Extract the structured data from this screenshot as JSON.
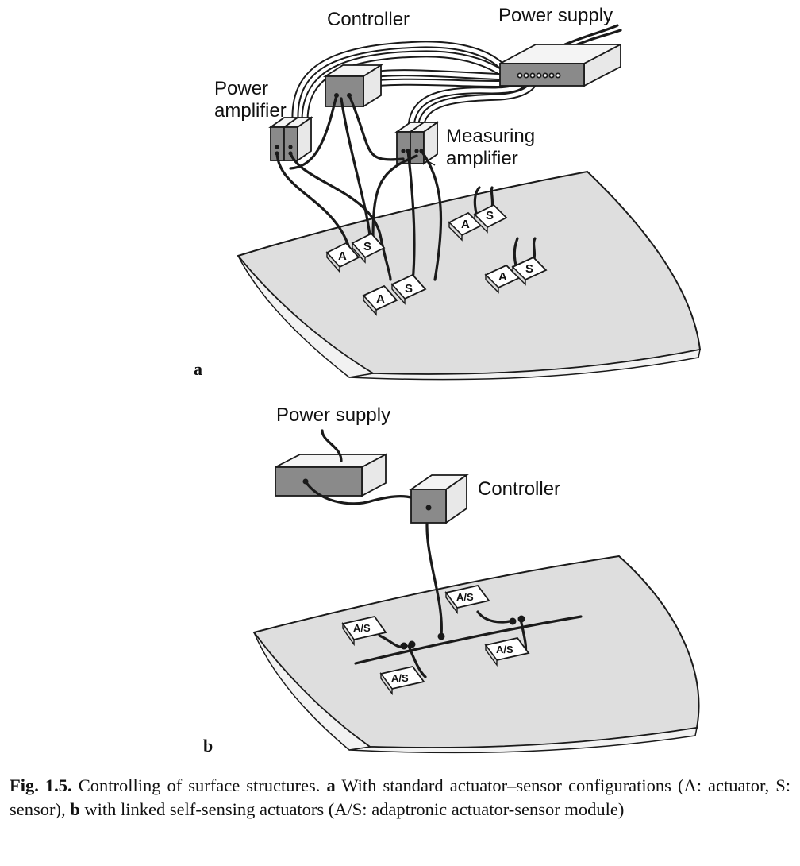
{
  "panel_a": {
    "label": "a",
    "controller_label": "Controller",
    "power_supply_label": "Power supply",
    "power_amplifier_label_line1": "Power",
    "power_amplifier_label_line2": "amplifier",
    "measuring_amplifier_label_line1": "Measuring",
    "measuring_amplifier_label_line2": "amplifier",
    "actuator_tag": "A",
    "sensor_tag": "S"
  },
  "panel_b": {
    "label": "b",
    "power_supply_label": "Power supply",
    "controller_label": "Controller",
    "module_tag": "A/S"
  },
  "caption": {
    "fig_number": "Fig. 1.5.",
    "text_1": " Controlling of surface structures. ",
    "bold_a": "a",
    "text_2": " With standard actuator–sensor configurations (A: actuator, S: sensor), ",
    "bold_b": "b",
    "text_3": " with linked self-sensing actuators (A/S: adaptronic actuator-sensor module)"
  }
}
